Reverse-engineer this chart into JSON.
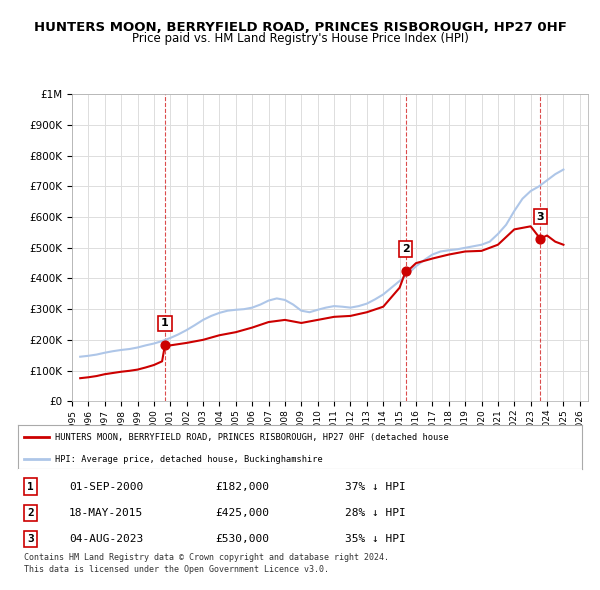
{
  "title": "HUNTERS MOON, BERRYFIELD ROAD, PRINCES RISBOROUGH, HP27 0HF",
  "subtitle": "Price paid vs. HM Land Registry's House Price Index (HPI)",
  "title_fontsize": 11,
  "subtitle_fontsize": 9.5,
  "ylabel_ticks": [
    "£0",
    "£100K",
    "£200K",
    "£300K",
    "£400K",
    "£500K",
    "£600K",
    "£700K",
    "£800K",
    "£900K",
    "£1M"
  ],
  "ytick_values": [
    0,
    100000,
    200000,
    300000,
    400000,
    500000,
    600000,
    700000,
    800000,
    900000,
    1000000
  ],
  "ylim": [
    0,
    1000000
  ],
  "xlim_start": 1995.5,
  "xlim_end": 2026.5,
  "xticks": [
    1995,
    1996,
    1997,
    1998,
    1999,
    2000,
    2001,
    2002,
    2003,
    2004,
    2005,
    2006,
    2007,
    2008,
    2009,
    2010,
    2011,
    2012,
    2013,
    2014,
    2015,
    2016,
    2017,
    2018,
    2019,
    2020,
    2021,
    2022,
    2023,
    2024,
    2025,
    2026
  ],
  "hpi_color": "#aec6e8",
  "price_color": "#cc0000",
  "sale_marker_color": "#cc0000",
  "vline_color": "#cc0000",
  "grid_color": "#dddddd",
  "bg_color": "#ffffff",
  "legend_box_color": "#ffffff",
  "legend_border_color": "#999999",
  "sale_points": [
    {
      "year": 2000.67,
      "price": 182000,
      "label": "1"
    },
    {
      "year": 2015.38,
      "price": 425000,
      "label": "2"
    },
    {
      "year": 2023.58,
      "price": 530000,
      "label": "3"
    }
  ],
  "table_entries": [
    {
      "num": "1",
      "date": "01-SEP-2000",
      "price": "£182,000",
      "hpi": "37% ↓ HPI"
    },
    {
      "num": "2",
      "date": "18-MAY-2015",
      "price": "£425,000",
      "hpi": "28% ↓ HPI"
    },
    {
      "num": "3",
      "date": "04-AUG-2023",
      "price": "£530,000",
      "hpi": "35% ↓ HPI"
    }
  ],
  "legend_line1": "HUNTERS MOON, BERRYFIELD ROAD, PRINCES RISBOROUGH, HP27 0HF (detached house",
  "legend_line2": "HPI: Average price, detached house, Buckinghamshire",
  "footnote1": "Contains HM Land Registry data © Crown copyright and database right 2024.",
  "footnote2": "This data is licensed under the Open Government Licence v3.0.",
  "hpi_data": {
    "years": [
      1995.5,
      1996.0,
      1996.5,
      1997.0,
      1997.5,
      1998.0,
      1998.5,
      1999.0,
      1999.5,
      2000.0,
      2000.5,
      2001.0,
      2001.5,
      2002.0,
      2002.5,
      2003.0,
      2003.5,
      2004.0,
      2004.5,
      2005.0,
      2005.5,
      2006.0,
      2006.5,
      2007.0,
      2007.5,
      2008.0,
      2008.5,
      2009.0,
      2009.5,
      2010.0,
      2010.5,
      2011.0,
      2011.5,
      2012.0,
      2012.5,
      2013.0,
      2013.5,
      2014.0,
      2014.5,
      2015.0,
      2015.5,
      2016.0,
      2016.5,
      2017.0,
      2017.5,
      2018.0,
      2018.5,
      2019.0,
      2019.5,
      2020.0,
      2020.5,
      2021.0,
      2021.5,
      2022.0,
      2022.5,
      2023.0,
      2023.5,
      2024.0,
      2024.5,
      2025.0
    ],
    "values": [
      145000,
      148000,
      152000,
      158000,
      163000,
      167000,
      170000,
      175000,
      182000,
      188000,
      196000,
      206000,
      218000,
      232000,
      248000,
      265000,
      278000,
      288000,
      295000,
      298000,
      300000,
      305000,
      315000,
      328000,
      335000,
      330000,
      315000,
      295000,
      290000,
      298000,
      305000,
      310000,
      308000,
      305000,
      310000,
      318000,
      332000,
      348000,
      370000,
      392000,
      415000,
      440000,
      460000,
      478000,
      488000,
      492000,
      495000,
      500000,
      505000,
      510000,
      520000,
      545000,
      575000,
      620000,
      660000,
      685000,
      700000,
      720000,
      740000,
      755000
    ]
  },
  "price_data": {
    "years": [
      1995.5,
      1996.0,
      1996.5,
      1997.0,
      1997.5,
      1998.0,
      1998.5,
      1999.0,
      1999.5,
      2000.0,
      2000.5,
      2000.67,
      2000.75,
      2001.0,
      2002.0,
      2003.0,
      2004.0,
      2005.0,
      2006.0,
      2007.0,
      2008.0,
      2009.0,
      2010.0,
      2011.0,
      2012.0,
      2013.0,
      2014.0,
      2015.0,
      2015.38,
      2015.5,
      2016.0,
      2017.0,
      2018.0,
      2019.0,
      2020.0,
      2021.0,
      2022.0,
      2023.0,
      2023.58,
      2024.0,
      2024.5,
      2025.0
    ],
    "values": [
      75000,
      78000,
      82000,
      88000,
      92000,
      96000,
      99000,
      103000,
      110000,
      118000,
      130000,
      182000,
      182000,
      182000,
      190000,
      200000,
      215000,
      225000,
      240000,
      258000,
      265000,
      255000,
      265000,
      275000,
      278000,
      290000,
      308000,
      370000,
      425000,
      425000,
      450000,
      465000,
      478000,
      488000,
      490000,
      510000,
      560000,
      570000,
      530000,
      540000,
      520000,
      510000
    ]
  }
}
